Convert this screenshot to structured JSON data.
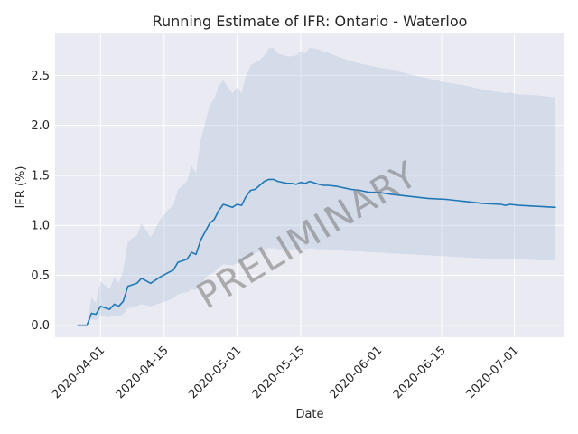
{
  "chart_data": {
    "type": "line",
    "title": "Running Estimate of IFR: Ontario - Waterloo",
    "xlabel": "Date",
    "ylabel": "IFR (%)",
    "watermark": "PRELIMINARY",
    "xlim": [
      "2020-03-22",
      "2020-07-12"
    ],
    "ylim": [
      -0.12,
      2.92
    ],
    "grid": true,
    "x_ticks": [
      "2020-04-01",
      "2020-04-15",
      "2020-05-01",
      "2020-05-15",
      "2020-06-01",
      "2020-06-15",
      "2020-07-01"
    ],
    "y_ticks": [
      0.0,
      0.5,
      1.0,
      1.5,
      2.0,
      2.5
    ],
    "series": [
      {
        "color": "#1f77b4",
        "points": [
          [
            "2020-03-27",
            0.0
          ],
          [
            "2020-03-29",
            0.0
          ],
          [
            "2020-03-30",
            0.12
          ],
          [
            "2020-03-31",
            0.11
          ],
          [
            "2020-04-01",
            0.19
          ],
          [
            "2020-04-03",
            0.16
          ],
          [
            "2020-04-04",
            0.21
          ],
          [
            "2020-04-05",
            0.19
          ],
          [
            "2020-04-06",
            0.24
          ],
          [
            "2020-04-07",
            0.39
          ],
          [
            "2020-04-09",
            0.42
          ],
          [
            "2020-04-10",
            0.47
          ],
          [
            "2020-04-12",
            0.42
          ],
          [
            "2020-04-14",
            0.48
          ],
          [
            "2020-04-16",
            0.53
          ],
          [
            "2020-04-17",
            0.55
          ],
          [
            "2020-04-18",
            0.63
          ],
          [
            "2020-04-20",
            0.66
          ],
          [
            "2020-04-21",
            0.73
          ],
          [
            "2020-04-22",
            0.71
          ],
          [
            "2020-04-23",
            0.85
          ],
          [
            "2020-04-25",
            1.02
          ],
          [
            "2020-04-26",
            1.06
          ],
          [
            "2020-04-27",
            1.15
          ],
          [
            "2020-04-28",
            1.21
          ],
          [
            "2020-04-30",
            1.18
          ],
          [
            "2020-05-01",
            1.21
          ],
          [
            "2020-05-02",
            1.2
          ],
          [
            "2020-05-03",
            1.29
          ],
          [
            "2020-05-04",
            1.35
          ],
          [
            "2020-05-05",
            1.36
          ],
          [
            "2020-05-06",
            1.4
          ],
          [
            "2020-05-07",
            1.44
          ],
          [
            "2020-05-08",
            1.46
          ],
          [
            "2020-05-09",
            1.46
          ],
          [
            "2020-05-10",
            1.44
          ],
          [
            "2020-05-12",
            1.42
          ],
          [
            "2020-05-13",
            1.42
          ],
          [
            "2020-05-14",
            1.41
          ],
          [
            "2020-05-15",
            1.43
          ],
          [
            "2020-05-16",
            1.42
          ],
          [
            "2020-05-17",
            1.44
          ],
          [
            "2020-05-19",
            1.41
          ],
          [
            "2020-05-20",
            1.4
          ],
          [
            "2020-05-21",
            1.4
          ],
          [
            "2020-05-23",
            1.39
          ],
          [
            "2020-05-26",
            1.36
          ],
          [
            "2020-05-28",
            1.35
          ],
          [
            "2020-05-30",
            1.33
          ],
          [
            "2020-06-01",
            1.33
          ],
          [
            "2020-06-04",
            1.31
          ],
          [
            "2020-06-08",
            1.29
          ],
          [
            "2020-06-12",
            1.27
          ],
          [
            "2020-06-16",
            1.26
          ],
          [
            "2020-06-20",
            1.24
          ],
          [
            "2020-06-24",
            1.22
          ],
          [
            "2020-06-28",
            1.21
          ],
          [
            "2020-06-29",
            1.2
          ],
          [
            "2020-06-30",
            1.21
          ],
          [
            "2020-07-02",
            1.2
          ],
          [
            "2020-07-06",
            1.19
          ],
          [
            "2020-07-10",
            1.18
          ]
        ]
      }
    ],
    "confidence_band": {
      "color": "#b0c4de",
      "upper": [
        [
          "2020-03-27",
          0.0
        ],
        [
          "2020-03-29",
          0.0
        ],
        [
          "2020-03-30",
          0.28
        ],
        [
          "2020-03-31",
          0.22
        ],
        [
          "2020-04-01",
          0.44
        ],
        [
          "2020-04-03",
          0.36
        ],
        [
          "2020-04-04",
          0.48
        ],
        [
          "2020-04-05",
          0.42
        ],
        [
          "2020-04-06",
          0.55
        ],
        [
          "2020-04-07",
          0.84
        ],
        [
          "2020-04-09",
          0.9
        ],
        [
          "2020-04-10",
          1.02
        ],
        [
          "2020-04-12",
          0.88
        ],
        [
          "2020-04-14",
          1.05
        ],
        [
          "2020-04-16",
          1.16
        ],
        [
          "2020-04-17",
          1.2
        ],
        [
          "2020-04-18",
          1.36
        ],
        [
          "2020-04-20",
          1.44
        ],
        [
          "2020-04-21",
          1.6
        ],
        [
          "2020-04-22",
          1.52
        ],
        [
          "2020-04-23",
          1.85
        ],
        [
          "2020-04-25",
          2.2
        ],
        [
          "2020-04-26",
          2.27
        ],
        [
          "2020-04-27",
          2.4
        ],
        [
          "2020-04-28",
          2.45
        ],
        [
          "2020-04-30",
          2.32
        ],
        [
          "2020-05-01",
          2.38
        ],
        [
          "2020-05-02",
          2.32
        ],
        [
          "2020-05-03",
          2.5
        ],
        [
          "2020-05-04",
          2.6
        ],
        [
          "2020-05-05",
          2.63
        ],
        [
          "2020-05-06",
          2.65
        ],
        [
          "2020-05-07",
          2.7
        ],
        [
          "2020-05-08",
          2.77
        ],
        [
          "2020-05-09",
          2.78
        ],
        [
          "2020-05-10",
          2.72
        ],
        [
          "2020-05-12",
          2.69
        ],
        [
          "2020-05-13",
          2.69
        ],
        [
          "2020-05-14",
          2.7
        ],
        [
          "2020-05-15",
          2.74
        ],
        [
          "2020-05-16",
          2.72
        ],
        [
          "2020-05-17",
          2.78
        ],
        [
          "2020-05-19",
          2.76
        ],
        [
          "2020-05-20",
          2.74
        ],
        [
          "2020-05-21",
          2.73
        ],
        [
          "2020-05-23",
          2.69
        ],
        [
          "2020-05-26",
          2.64
        ],
        [
          "2020-05-28",
          2.62
        ],
        [
          "2020-05-30",
          2.6
        ],
        [
          "2020-06-01",
          2.58
        ],
        [
          "2020-06-04",
          2.56
        ],
        [
          "2020-06-08",
          2.51
        ],
        [
          "2020-06-12",
          2.47
        ],
        [
          "2020-06-16",
          2.43
        ],
        [
          "2020-06-20",
          2.4
        ],
        [
          "2020-06-24",
          2.36
        ],
        [
          "2020-06-28",
          2.33
        ],
        [
          "2020-06-29",
          2.32
        ],
        [
          "2020-06-30",
          2.33
        ],
        [
          "2020-07-02",
          2.31
        ],
        [
          "2020-07-06",
          2.3
        ],
        [
          "2020-07-10",
          2.28
        ]
      ],
      "lower": [
        [
          "2020-03-27",
          0.0
        ],
        [
          "2020-03-29",
          0.0
        ],
        [
          "2020-03-30",
          0.06
        ],
        [
          "2020-03-31",
          0.05
        ],
        [
          "2020-04-01",
          0.09
        ],
        [
          "2020-04-03",
          0.08
        ],
        [
          "2020-04-04",
          0.1
        ],
        [
          "2020-04-05",
          0.09
        ],
        [
          "2020-04-06",
          0.11
        ],
        [
          "2020-04-07",
          0.17
        ],
        [
          "2020-04-09",
          0.19
        ],
        [
          "2020-04-10",
          0.21
        ],
        [
          "2020-04-12",
          0.19
        ],
        [
          "2020-04-14",
          0.22
        ],
        [
          "2020-04-16",
          0.25
        ],
        [
          "2020-04-17",
          0.27
        ],
        [
          "2020-04-18",
          0.31
        ],
        [
          "2020-04-20",
          0.33
        ],
        [
          "2020-04-21",
          0.36
        ],
        [
          "2020-04-22",
          0.35
        ],
        [
          "2020-04-23",
          0.42
        ],
        [
          "2020-04-25",
          0.51
        ],
        [
          "2020-04-26",
          0.53
        ],
        [
          "2020-04-27",
          0.58
        ],
        [
          "2020-04-28",
          0.61
        ],
        [
          "2020-04-30",
          0.6
        ],
        [
          "2020-05-01",
          0.62
        ],
        [
          "2020-05-02",
          0.62
        ],
        [
          "2020-05-03",
          0.67
        ],
        [
          "2020-05-04",
          0.71
        ],
        [
          "2020-05-05",
          0.72
        ],
        [
          "2020-05-06",
          0.74
        ],
        [
          "2020-05-07",
          0.76
        ],
        [
          "2020-05-08",
          0.77
        ],
        [
          "2020-05-09",
          0.77
        ],
        [
          "2020-05-10",
          0.76
        ],
        [
          "2020-05-12",
          0.76
        ],
        [
          "2020-05-13",
          0.76
        ],
        [
          "2020-05-14",
          0.76
        ],
        [
          "2020-05-15",
          0.77
        ],
        [
          "2020-05-16",
          0.76
        ],
        [
          "2020-05-17",
          0.77
        ],
        [
          "2020-05-19",
          0.76
        ],
        [
          "2020-05-20",
          0.76
        ],
        [
          "2020-05-21",
          0.76
        ],
        [
          "2020-05-23",
          0.75
        ],
        [
          "2020-05-26",
          0.74
        ],
        [
          "2020-05-28",
          0.74
        ],
        [
          "2020-05-30",
          0.73
        ],
        [
          "2020-06-01",
          0.73
        ],
        [
          "2020-06-04",
          0.72
        ],
        [
          "2020-06-08",
          0.71
        ],
        [
          "2020-06-12",
          0.7
        ],
        [
          "2020-06-16",
          0.69
        ],
        [
          "2020-06-20",
          0.68
        ],
        [
          "2020-06-24",
          0.67
        ],
        [
          "2020-06-28",
          0.66
        ],
        [
          "2020-06-29",
          0.66
        ],
        [
          "2020-06-30",
          0.66
        ],
        [
          "2020-07-02",
          0.66
        ],
        [
          "2020-07-06",
          0.65
        ],
        [
          "2020-07-10",
          0.65
        ]
      ]
    },
    "style": {
      "background": "#eaeaf2",
      "grid_color": "#ffffff"
    }
  }
}
